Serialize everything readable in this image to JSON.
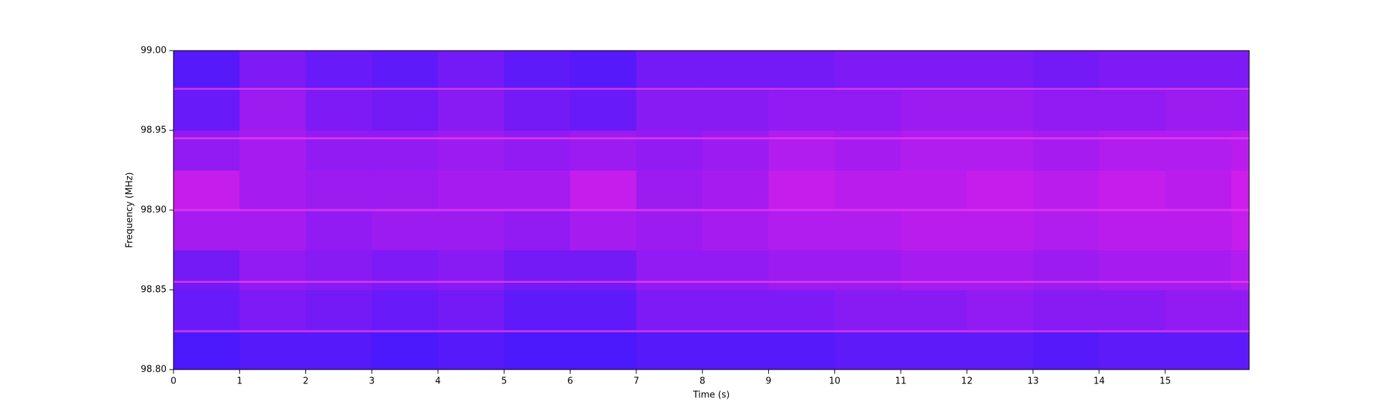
{
  "chart_data": {
    "type": "spectrogram",
    "x_label": "Time (s)",
    "y_label": "Frequency (MHz)",
    "xbins": [
      0,
      1,
      2,
      3,
      4,
      5,
      6,
      7,
      8,
      9,
      10,
      11,
      12,
      13,
      14,
      15,
      16,
      16.27
    ],
    "ybins": [
      98.8,
      98.825,
      98.85,
      98.875,
      98.9,
      98.925,
      98.95,
      98.975,
      99.0
    ],
    "z": [
      [
        0.15,
        0.2,
        0.2,
        0.15,
        0.2,
        0.15,
        0.15,
        0.2,
        0.2,
        0.2,
        0.25,
        0.25,
        0.25,
        0.2,
        0.25,
        0.25,
        0.25
      ],
      [
        0.3,
        0.4,
        0.35,
        0.3,
        0.35,
        0.25,
        0.25,
        0.4,
        0.4,
        0.4,
        0.45,
        0.45,
        0.5,
        0.45,
        0.45,
        0.5,
        0.5
      ],
      [
        0.35,
        0.5,
        0.45,
        0.4,
        0.45,
        0.35,
        0.35,
        0.5,
        0.5,
        0.55,
        0.55,
        0.6,
        0.6,
        0.55,
        0.6,
        0.6,
        0.65
      ],
      [
        0.6,
        0.6,
        0.5,
        0.55,
        0.55,
        0.5,
        0.6,
        0.55,
        0.6,
        0.65,
        0.65,
        0.7,
        0.7,
        0.65,
        0.7,
        0.7,
        0.75
      ],
      [
        0.75,
        0.6,
        0.55,
        0.55,
        0.6,
        0.6,
        0.75,
        0.55,
        0.6,
        0.75,
        0.7,
        0.7,
        0.75,
        0.7,
        0.75,
        0.7,
        0.8
      ],
      [
        0.5,
        0.6,
        0.5,
        0.5,
        0.55,
        0.5,
        0.55,
        0.5,
        0.55,
        0.65,
        0.6,
        0.65,
        0.65,
        0.6,
        0.65,
        0.65,
        0.7
      ],
      [
        0.3,
        0.55,
        0.4,
        0.35,
        0.45,
        0.35,
        0.3,
        0.45,
        0.45,
        0.5,
        0.5,
        0.55,
        0.55,
        0.5,
        0.5,
        0.55,
        0.55
      ],
      [
        0.2,
        0.4,
        0.3,
        0.25,
        0.35,
        0.25,
        0.2,
        0.35,
        0.35,
        0.35,
        0.4,
        0.4,
        0.4,
        0.35,
        0.4,
        0.4,
        0.4
      ]
    ],
    "colormap": [
      "#2c18ff",
      "#f81ee6"
    ],
    "tones": [
      98.976,
      98.945,
      98.9,
      98.855,
      98.824
    ],
    "tone_color": "#e23cf2",
    "xlim": [
      0,
      16.27
    ],
    "ylim": [
      98.8,
      99.0
    ],
    "xticks": [
      0,
      1,
      2,
      3,
      4,
      5,
      6,
      7,
      8,
      9,
      10,
      11,
      12,
      13,
      14,
      15
    ],
    "yticks": [
      {
        "value": 98.8,
        "label": "98.80"
      },
      98.85,
      {
        "value": 98.9,
        "label": "98.90"
      },
      98.95,
      {
        "value": 99.0,
        "label": "99.00"
      }
    ]
  }
}
